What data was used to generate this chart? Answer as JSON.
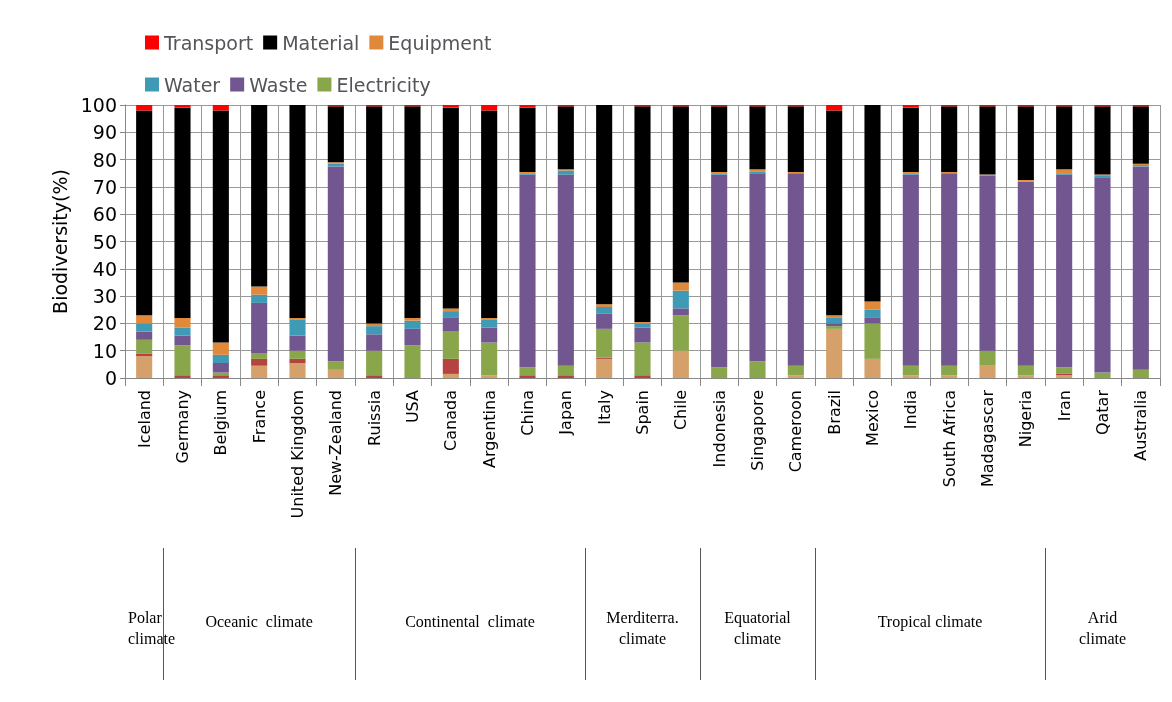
{
  "chart_data": {
    "type": "bar",
    "stacked": true,
    "ylabel": "Biodiversity(%)",
    "ylim": [
      0,
      100
    ],
    "yticks": [
      0,
      10,
      20,
      30,
      40,
      50,
      60,
      70,
      80,
      90,
      100
    ],
    "grid": true,
    "legend": "top",
    "categories": [
      "Iceland",
      "Germany",
      "Belgium",
      "France",
      "United Kingdom",
      "New-Zealand",
      "Ruissia",
      "USA",
      "Canada",
      "Argentina",
      "China",
      "Japan",
      "Italy",
      "Spain",
      "Chile",
      "Indonesia",
      "Singapore",
      "Cameroon",
      "Brazil",
      "Mexico",
      "India",
      "South Africa",
      "Madagascar",
      "Nigeria",
      "Iran",
      "Qatar",
      "Australia"
    ],
    "series": [
      {
        "color": "#d6a06a",
        "values": [
          8,
          0,
          0,
          4.5,
          5.5,
          3,
          0,
          0,
          1.5,
          1,
          0,
          0,
          7,
          0,
          10,
          0,
          0,
          1,
          18,
          7,
          1,
          1,
          4.5,
          1,
          1,
          0,
          0
        ]
      },
      {
        "color": "#b5433f",
        "values": [
          1,
          1,
          1,
          2.5,
          1.5,
          0,
          1,
          0,
          5.5,
          0,
          1,
          1,
          0.5,
          1,
          0,
          0,
          0,
          0,
          0,
          0,
          0,
          0,
          0,
          0,
          0.5,
          0,
          0
        ]
      },
      {
        "name": "Electricity",
        "color": "#8aa64b",
        "values": [
          5,
          11,
          1,
          2,
          3,
          3,
          9,
          12,
          10,
          12,
          3,
          3.5,
          10.5,
          12,
          13,
          4,
          6,
          3.5,
          1,
          13,
          3.5,
          3.5,
          5.5,
          3.5,
          2.5,
          2,
          3
        ]
      },
      {
        "name": "Waste",
        "color": "#71568f",
        "values": [
          3,
          3.5,
          3.5,
          18.5,
          5.5,
          71.5,
          6,
          6,
          5,
          5.5,
          70.5,
          70,
          5.5,
          5.5,
          2.5,
          70.5,
          69,
          70.5,
          1,
          2,
          70,
          70.5,
          64,
          67.5,
          70.5,
          71.5,
          74.5
        ]
      },
      {
        "name": "Water",
        "color": "#3f9bb5",
        "values": [
          3,
          3,
          3,
          3,
          6,
          1,
          3,
          3,
          2.5,
          3,
          0.5,
          1.5,
          2.5,
          1.5,
          6.5,
          0.5,
          0.5,
          0,
          2,
          3,
          0.5,
          0,
          0,
          0,
          0.5,
          0.5,
          0.5
        ]
      },
      {
        "name": "Equipment",
        "color": "#e0893a",
        "values": [
          3,
          3.5,
          4.5,
          3,
          0.5,
          0.5,
          1,
          1,
          1,
          0.5,
          0.5,
          0.5,
          1,
          0.5,
          3,
          0.5,
          1,
          0.5,
          1,
          3,
          0.5,
          0.5,
          0.5,
          0.5,
          1.5,
          0.5,
          0.5
        ]
      },
      {
        "name": "Material",
        "color": "#000000",
        "values": [
          75,
          77,
          85,
          66.5,
          78,
          20.5,
          79.5,
          77.5,
          73.5,
          76,
          23.5,
          23,
          73,
          79,
          64.5,
          24,
          23,
          24,
          75,
          72,
          23.5,
          24,
          25,
          27,
          23,
          25,
          21
        ]
      },
      {
        "name": "Transport",
        "color": "#ff0000",
        "values": [
          2,
          1,
          2,
          0,
          0,
          0.5,
          0.5,
          0.5,
          1,
          2,
          1,
          0.5,
          0,
          0.5,
          0.5,
          0.5,
          0.5,
          0.5,
          2,
          0,
          1,
          0.5,
          0.5,
          0.5,
          0.5,
          0.5,
          0.5
        ]
      }
    ],
    "annotations": [
      "Polar\nclimate",
      "Oceanic  climate",
      "Continental  climate",
      "Merditerra.\nclimate",
      "Equatorial\nclimate",
      "Tropical climate",
      "Arid\nclimate"
    ]
  }
}
